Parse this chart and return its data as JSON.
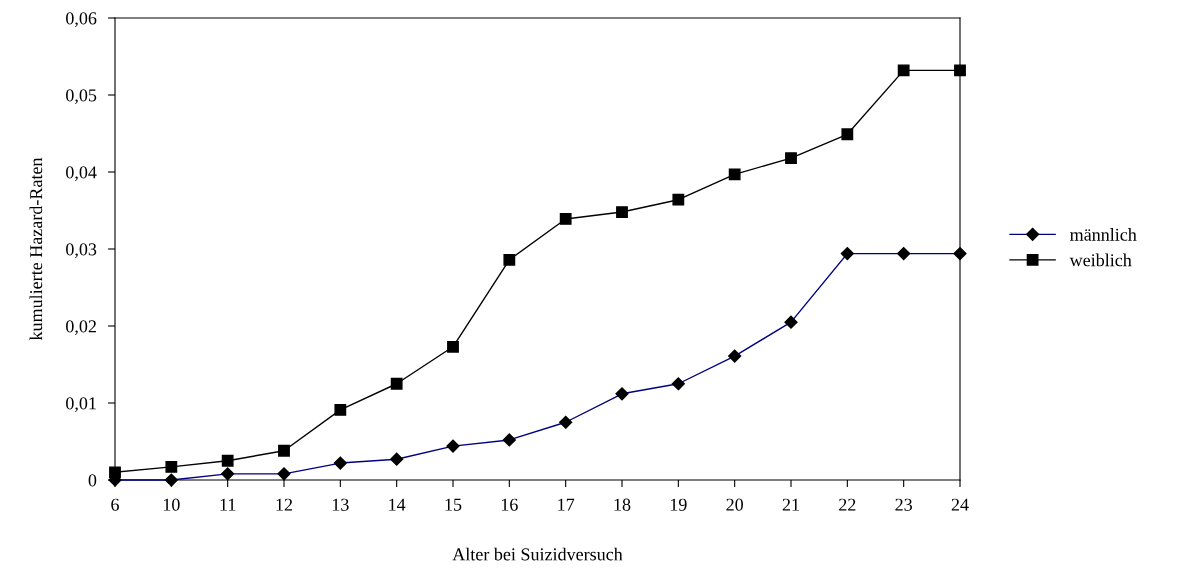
{
  "chart_data": {
    "type": "line",
    "xlabel": "Alter bei Suizidversuch",
    "ylabel": "kumulierte Hazard-Raten",
    "categories": [
      "6",
      "10",
      "11",
      "12",
      "13",
      "14",
      "15",
      "16",
      "17",
      "18",
      "19",
      "20",
      "21",
      "22",
      "23",
      "24"
    ],
    "series": [
      {
        "name": "männlich",
        "color": "#000080",
        "marker": "diamond",
        "values": [
          0,
          0,
          0.0008,
          0.0008,
          0.0022,
          0.0027,
          0.0044,
          0.0052,
          0.0075,
          0.0112,
          0.0125,
          0.0161,
          0.0205,
          0.0294,
          0.0294,
          0.0294
        ]
      },
      {
        "name": "weiblich",
        "color": "#000000",
        "marker": "square",
        "values": [
          0.001,
          0.0017,
          0.0025,
          0.0038,
          0.0091,
          0.0125,
          0.0173,
          0.0286,
          0.0339,
          0.0348,
          0.0364,
          0.0397,
          0.0418,
          0.0449,
          0.0532,
          0.0532
        ]
      }
    ],
    "ylim": [
      0,
      0.06
    ],
    "yticks": [
      {
        "value": 0,
        "label": "0"
      },
      {
        "value": 0.01,
        "label": "0,01"
      },
      {
        "value": 0.02,
        "label": "0,02"
      },
      {
        "value": 0.03,
        "label": "0,03"
      },
      {
        "value": 0.04,
        "label": "0,04"
      },
      {
        "value": 0.05,
        "label": "0,05"
      },
      {
        "value": 0.06,
        "label": "0,06"
      }
    ],
    "grid": false,
    "legend": "right",
    "line_style": "solid"
  }
}
